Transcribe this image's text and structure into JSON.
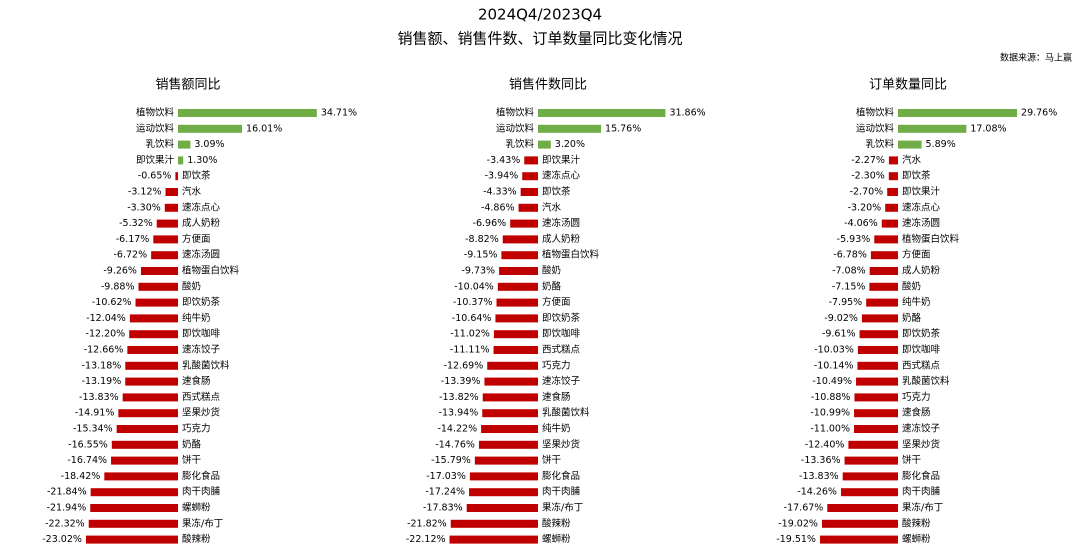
{
  "title": "2024Q4/2023Q4",
  "subtitle": "销售额、销售件数、订单数量同比变化情况",
  "source": "数据来源：马上赢",
  "chart_data": [
    {
      "type": "bar",
      "orientation": "horizontal",
      "title": "销售额同比",
      "positive_color": "#70ad47",
      "negative_color": "#c00000",
      "xlim": [
        -25,
        35
      ],
      "categories": [
        "植物饮料",
        "运动饮料",
        "乳饮料",
        "即饮果汁",
        "即饮茶",
        "汽水",
        "速冻点心",
        "成人奶粉",
        "方便面",
        "速冻汤圆",
        "植物蛋白饮料",
        "酸奶",
        "即饮奶茶",
        "纯牛奶",
        "即饮咖啡",
        "速冻饺子",
        "乳酸菌饮料",
        "速食肠",
        "西式糕点",
        "坚果炒货",
        "巧克力",
        "奶酪",
        "饼干",
        "膨化食品",
        "肉干肉脯",
        "螺蛳粉",
        "果冻/布丁",
        "酸辣粉"
      ],
      "values": [
        34.71,
        16.01,
        3.09,
        1.3,
        -0.65,
        -3.12,
        -3.3,
        -5.32,
        -6.17,
        -6.72,
        -9.26,
        -9.88,
        -10.62,
        -12.04,
        -12.2,
        -12.66,
        -13.18,
        -13.19,
        -13.83,
        -14.91,
        -15.34,
        -16.55,
        -16.74,
        -18.42,
        -21.84,
        -21.94,
        -22.32,
        -23.02
      ],
      "value_labels": [
        "34.71%",
        "16.01%",
        "3.09%",
        "1.30%",
        "-0.65%",
        "-3.12%",
        "-3.30%",
        "-5.32%",
        "-6.17%",
        "-6.72%",
        "-9.26%",
        "-9.88%",
        "-10.62%",
        "-12.04%",
        "-12.20%",
        "-12.66%",
        "-13.18%",
        "-13.19%",
        "-13.83%",
        "-14.91%",
        "-15.34%",
        "-16.55%",
        "-16.74%",
        "-18.42%",
        "-21.84%",
        "-21.94%",
        "-22.32%",
        "-23.02%"
      ]
    },
    {
      "type": "bar",
      "orientation": "horizontal",
      "title": "销售件数同比",
      "positive_color": "#70ad47",
      "negative_color": "#c00000",
      "xlim": [
        -25,
        35
      ],
      "categories": [
        "植物饮料",
        "运动饮料",
        "乳饮料",
        "即饮果汁",
        "速冻点心",
        "即饮茶",
        "汽水",
        "速冻汤圆",
        "成人奶粉",
        "植物蛋白饮料",
        "酸奶",
        "奶酪",
        "方便面",
        "即饮奶茶",
        "即饮咖啡",
        "西式糕点",
        "巧克力",
        "速冻饺子",
        "速食肠",
        "乳酸菌饮料",
        "纯牛奶",
        "坚果炒货",
        "饼干",
        "膨化食品",
        "肉干肉脯",
        "果冻/布丁",
        "酸辣粉",
        "螺蛳粉"
      ],
      "values": [
        31.86,
        15.76,
        3.2,
        -3.43,
        -3.94,
        -4.33,
        -4.86,
        -6.96,
        -8.82,
        -9.15,
        -9.73,
        -10.04,
        -10.37,
        -10.64,
        -11.02,
        -11.11,
        -12.69,
        -13.39,
        -13.82,
        -13.94,
        -14.22,
        -14.76,
        -15.79,
        -17.03,
        -17.24,
        -17.83,
        -21.82,
        -22.12
      ],
      "value_labels": [
        "31.86%",
        "15.76%",
        "3.20%",
        "-3.43%",
        "-3.94%",
        "-4.33%",
        "-4.86%",
        "-6.96%",
        "-8.82%",
        "-9.15%",
        "-9.73%",
        "-10.04%",
        "-10.37%",
        "-10.64%",
        "-11.02%",
        "-11.11%",
        "-12.69%",
        "-13.39%",
        "-13.82%",
        "-13.94%",
        "-14.22%",
        "-14.76%",
        "-15.79%",
        "-17.03%",
        "-17.24%",
        "-17.83%",
        "-21.82%",
        "-22.12%"
      ]
    },
    {
      "type": "bar",
      "orientation": "horizontal",
      "title": "订单数量同比",
      "positive_color": "#70ad47",
      "negative_color": "#c00000",
      "xlim": [
        -25,
        35
      ],
      "categories": [
        "植物饮料",
        "运动饮料",
        "乳饮料",
        "汽水",
        "即饮茶",
        "即饮果汁",
        "速冻点心",
        "速冻汤圆",
        "植物蛋白饮料",
        "方便面",
        "成人奶粉",
        "酸奶",
        "纯牛奶",
        "奶酪",
        "即饮奶茶",
        "即饮咖啡",
        "西式糕点",
        "乳酸菌饮料",
        "巧克力",
        "速食肠",
        "速冻饺子",
        "坚果炒货",
        "饼干",
        "膨化食品",
        "肉干肉脯",
        "果冻/布丁",
        "酸辣粉",
        "螺蛳粉"
      ],
      "values": [
        29.76,
        17.08,
        5.89,
        -2.27,
        -2.3,
        -2.7,
        -3.2,
        -4.06,
        -5.93,
        -6.78,
        -7.08,
        -7.15,
        -7.95,
        -9.02,
        -9.61,
        -10.03,
        -10.14,
        -10.49,
        -10.88,
        -10.99,
        -11.0,
        -12.4,
        -13.36,
        -13.83,
        -14.26,
        -17.67,
        -19.02,
        -19.51
      ],
      "value_labels": [
        "29.76%",
        "17.08%",
        "5.89%",
        "-2.27%",
        "-2.30%",
        "-2.70%",
        "-3.20%",
        "-4.06%",
        "-5.93%",
        "-6.78%",
        "-7.08%",
        "-7.15%",
        "-7.95%",
        "-9.02%",
        "-9.61%",
        "-10.03%",
        "-10.14%",
        "-10.49%",
        "-10.88%",
        "-10.99%",
        "-11.00%",
        "-12.40%",
        "-13.36%",
        "-13.83%",
        "-14.26%",
        "-17.67%",
        "-19.02%",
        "-19.51%"
      ]
    }
  ]
}
